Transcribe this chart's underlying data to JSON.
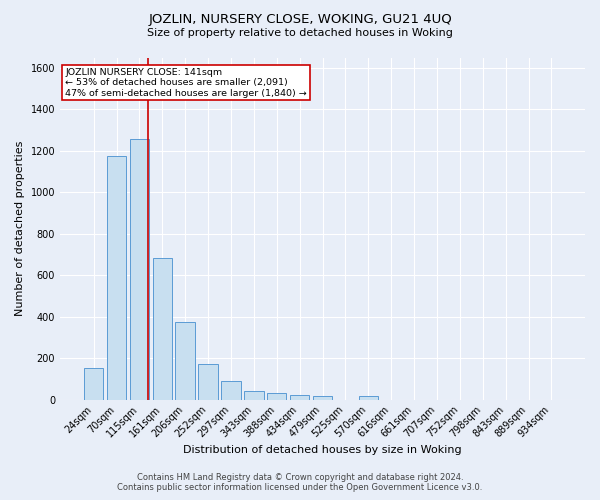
{
  "title": "JOZLIN, NURSERY CLOSE, WOKING, GU21 4UQ",
  "subtitle": "Size of property relative to detached houses in Woking",
  "xlabel": "Distribution of detached houses by size in Woking",
  "ylabel": "Number of detached properties",
  "footer_line1": "Contains HM Land Registry data © Crown copyright and database right 2024.",
  "footer_line2": "Contains public sector information licensed under the Open Government Licence v3.0.",
  "bar_labels": [
    "24sqm",
    "70sqm",
    "115sqm",
    "161sqm",
    "206sqm",
    "252sqm",
    "297sqm",
    "343sqm",
    "388sqm",
    "434sqm",
    "479sqm",
    "525sqm",
    "570sqm",
    "616sqm",
    "661sqm",
    "707sqm",
    "752sqm",
    "798sqm",
    "843sqm",
    "889sqm",
    "934sqm"
  ],
  "bar_values": [
    150,
    1175,
    1255,
    685,
    375,
    170,
    90,
    40,
    30,
    20,
    15,
    0,
    15,
    0,
    0,
    0,
    0,
    0,
    0,
    0,
    0
  ],
  "bar_color": "#c8dff0",
  "bar_edgecolor": "#5b9bd5",
  "bg_color": "#e8eef8",
  "grid_color": "#ffffff",
  "vline_color": "#cc0000",
  "vline_x": 2.38,
  "annotation_text_line1": "JOZLIN NURSERY CLOSE: 141sqm",
  "annotation_text_line2": "← 53% of detached houses are smaller (2,091)",
  "annotation_text_line3": "47% of semi-detached houses are larger (1,840) →",
  "annotation_box_edgecolor": "#cc0000",
  "ylim": [
    0,
    1650
  ],
  "yticks": [
    0,
    200,
    400,
    600,
    800,
    1000,
    1200,
    1400,
    1600
  ],
  "title_fontsize": 9.5,
  "subtitle_fontsize": 8,
  "axis_label_fontsize": 8,
  "tick_fontsize": 7,
  "footer_fontsize": 6
}
